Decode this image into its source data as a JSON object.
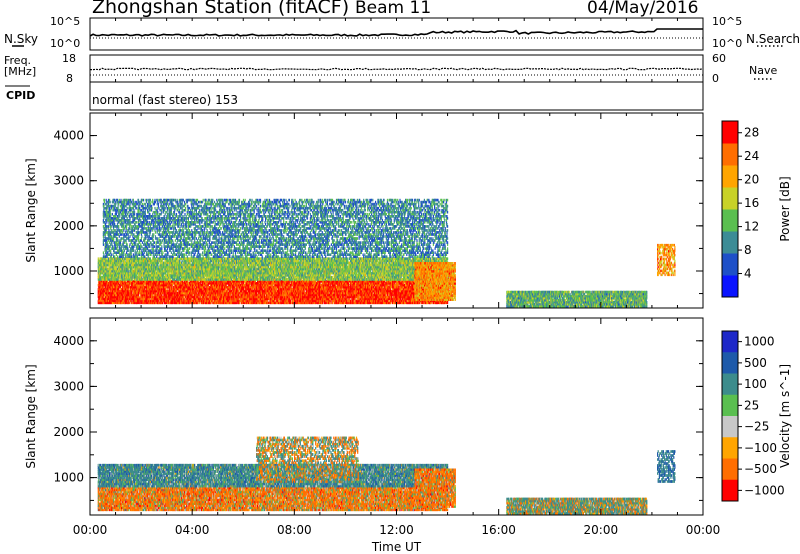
{
  "header": {
    "station": "Zhongshan Station (fitACF)",
    "beam": "Beam 11",
    "date": "04/May/2016"
  },
  "labels": {
    "nsky": "N.Sky",
    "nsearch": "N.Search",
    "freq": "Freq.",
    "mhz": "[MHz]",
    "nave": "Nave",
    "cpid": "CPID",
    "cpid_value": "normal (fast stereo) 153"
  },
  "noise_axis": {
    "left": [
      "10^5",
      "10^0"
    ],
    "right": [
      "10^5",
      "10^0"
    ]
  },
  "freq_axis": {
    "left": [
      "18",
      "8"
    ],
    "right": [
      "60",
      "0"
    ]
  },
  "chart_data": [
    {
      "type": "heatmap",
      "panel": "power",
      "xlabel": "",
      "ylabel": "Slant Range [km]",
      "ylim": [
        180,
        4500
      ],
      "yticks": [
        1000,
        2000,
        3000,
        4000
      ],
      "x_ticks": [
        "00:00",
        "04:00",
        "08:00",
        "12:00",
        "16:00",
        "20:00",
        "00:00"
      ],
      "colorbar": {
        "label": "Power [dB]",
        "ticks": [
          "4",
          "8",
          "12",
          "16",
          "20",
          "24",
          "28"
        ],
        "range": [
          0,
          30
        ],
        "colors": [
          "#0a14ff",
          "#1e50c8",
          "#3c8c96",
          "#5abf50",
          "#c8d228",
          "#ffa500",
          "#ff6e00",
          "#ff0000"
        ]
      },
      "echo_regions": [
        {
          "t0": 0.3,
          "t1": 14.0,
          "r0": 280,
          "r1": 800,
          "value": 27
        },
        {
          "t0": 0.3,
          "t1": 14.0,
          "r0": 800,
          "r1": 1300,
          "value": 14
        },
        {
          "t0": 0.5,
          "t1": 14.0,
          "r0": 1300,
          "r1": 2600,
          "value": 9
        },
        {
          "t0": 12.7,
          "t1": 14.3,
          "r0": 350,
          "r1": 1200,
          "value": 22
        },
        {
          "t0": 16.3,
          "t1": 21.8,
          "r0": 200,
          "r1": 560,
          "value": 12
        },
        {
          "t0": 22.2,
          "t1": 22.9,
          "r0": 900,
          "r1": 1600,
          "value": 22
        }
      ]
    },
    {
      "type": "heatmap",
      "panel": "velocity",
      "xlabel": "Time UT",
      "ylabel": "Slant Range [km]",
      "ylim": [
        180,
        4500
      ],
      "yticks": [
        1000,
        2000,
        3000,
        4000
      ],
      "x_ticks": [
        "00:00",
        "04:00",
        "08:00",
        "12:00",
        "16:00",
        "20:00",
        "00:00"
      ],
      "colorbar": {
        "label": "Velocity [m s^-1]",
        "ticks": [
          "1000",
          "500",
          "100",
          "25",
          "−25",
          "−100",
          "−500",
          "−1000"
        ],
        "colors": [
          "#1e28c8",
          "#1e5aaa",
          "#3c8c8c",
          "#5abf50",
          "#c8c8c8",
          "#ffa500",
          "#ff6e00",
          "#ff0000"
        ]
      },
      "echo_regions": [
        {
          "t0": 0.3,
          "t1": 14.0,
          "r0": 280,
          "r1": 800,
          "value": -200
        },
        {
          "t0": 0.3,
          "t1": 14.0,
          "r0": 800,
          "r1": 1300,
          "value": 300
        },
        {
          "t0": 6.5,
          "t1": 10.5,
          "r0": 900,
          "r1": 1900,
          "value": 0
        },
        {
          "t0": 12.7,
          "t1": 14.3,
          "r0": 350,
          "r1": 1200,
          "value": -200
        },
        {
          "t0": 16.3,
          "t1": 21.8,
          "r0": 200,
          "r1": 560,
          "value": 100
        },
        {
          "t0": 22.2,
          "t1": 22.9,
          "r0": 900,
          "r1": 1600,
          "value": 500
        }
      ]
    }
  ]
}
